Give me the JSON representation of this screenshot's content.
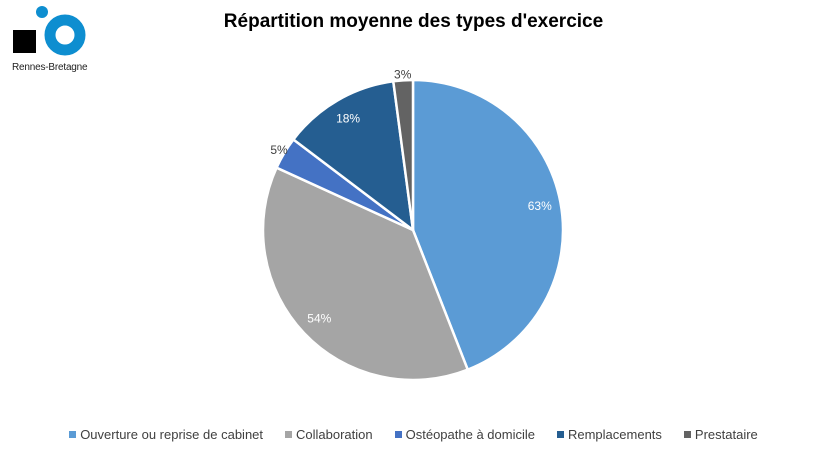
{
  "logo": {
    "text": "Rennes-Bretagne",
    "color": "#0E8ED0"
  },
  "chart_data": {
    "type": "pie",
    "title": "Répartition moyenne des types d'exercice",
    "categories": [
      "Ouverture ou reprise de cabinet",
      "Collaboration",
      "Ostéopathe à domicile",
      "Remplacements",
      "Prestataire"
    ],
    "values": [
      63,
      54,
      5,
      18,
      3
    ],
    "labels": [
      "63%",
      "54%",
      "5%",
      "18%",
      "3%"
    ],
    "colors": [
      "#5B9BD5",
      "#A5A5A5",
      "#4472C4",
      "#255E91",
      "#636363"
    ],
    "start_angle": "top, clockwise",
    "legend": "bottom"
  }
}
